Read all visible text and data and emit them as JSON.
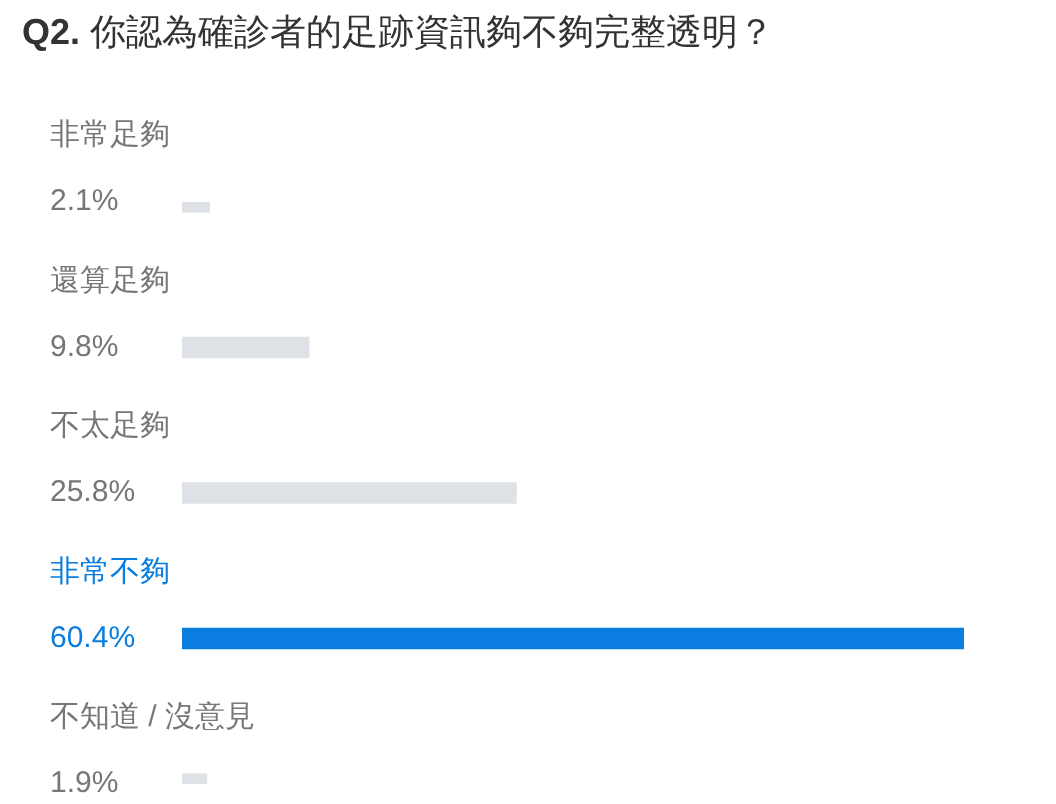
{
  "chart_data": {
    "type": "bar",
    "orientation": "horizontal",
    "title": "Q2. 你認為確診者的足跡資訊夠不夠完整透明？",
    "categories": [
      "非常足夠",
      "還算足夠",
      "不太足夠",
      "非常不夠",
      "不知道 / 沒意見"
    ],
    "values": [
      2.1,
      9.8,
      25.8,
      60.4,
      1.9
    ],
    "value_labels": [
      "2.1%",
      "9.8%",
      "25.8%",
      "60.4%",
      "1.9%"
    ],
    "colors": [
      "#dee1e5",
      "#dee1e5",
      "#dee1e5",
      "#0a7ee0",
      "#dee1e5"
    ]
  }
}
